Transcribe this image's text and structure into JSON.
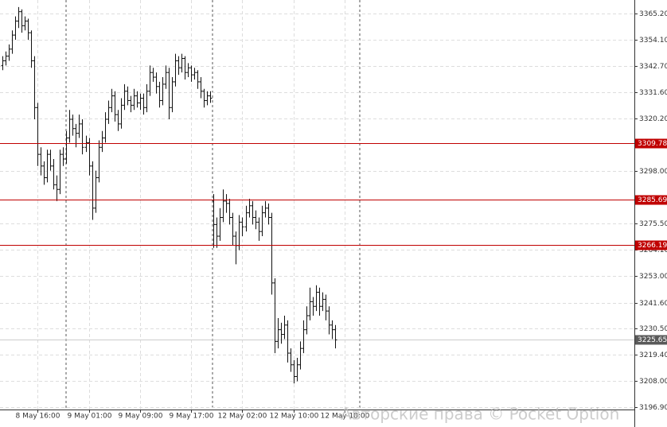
{
  "chart_data": {
    "type": "ohlc",
    "watermark": "Авторские права © Pocket Option",
    "color": "#111111",
    "level_color": "#c00000",
    "current_price": 3225.65,
    "levels": [
      3309.78,
      3285.69,
      3266.19
    ],
    "ylim": [
      3188.4,
      3371.0
    ],
    "yticks": [
      {
        "value": 3365.2,
        "label": "3365.20"
      },
      {
        "value": 3354.1,
        "label": "3354.10"
      },
      {
        "value": 3342.7,
        "label": "3342.70"
      },
      {
        "value": 3331.6,
        "label": "3331.60"
      },
      {
        "value": 3320.2,
        "label": "3320.20"
      },
      {
        "value": 3298,
        "label": "3298.00"
      },
      {
        "value": 3275.5,
        "label": "3275.50"
      },
      {
        "value": 3264.1,
        "label": "3264.10"
      },
      {
        "value": 3253,
        "label": "3253.00"
      },
      {
        "value": 3241.6,
        "label": "3241.60"
      },
      {
        "value": 3230.5,
        "label": "3230.50"
      },
      {
        "value": 3219.4,
        "label": "3219.40"
      },
      {
        "value": 3208,
        "label": "3208.00"
      },
      {
        "value": 3196.9,
        "label": "3196.90"
      }
    ],
    "grid": true,
    "categories": [
      null,
      null,
      null,
      null,
      null,
      null,
      null,
      null,
      null,
      null,
      null,
      "8 May 16:00",
      null,
      null,
      null,
      null,
      null,
      null,
      null,
      null,
      null,
      null,
      null,
      null,
      null,
      null,
      null,
      "9 May 01:00",
      null,
      null,
      null,
      null,
      null,
      null,
      null,
      null,
      null,
      null,
      null,
      null,
      null,
      null,
      null,
      "9 May 09:00",
      null,
      null,
      null,
      null,
      null,
      null,
      null,
      null,
      null,
      null,
      null,
      null,
      null,
      null,
      null,
      "9 May 17:00",
      null,
      null,
      null,
      null,
      null,
      null,
      null,
      null,
      null,
      null,
      null,
      null,
      null,
      null,
      null,
      "12 May 02:00",
      null,
      null,
      null,
      null,
      null,
      null,
      null,
      null,
      null,
      null,
      null,
      null,
      null,
      null,
      null,
      "12 May 10:00",
      null,
      null,
      null,
      null,
      null,
      null,
      null,
      null,
      null,
      null,
      null,
      null,
      null,
      null,
      null,
      "12 May 18:00"
    ],
    "ohlc": [
      [
        3343,
        3347,
        3341,
        3345
      ],
      [
        3345,
        3349,
        3343,
        3347
      ],
      [
        3347,
        3352,
        3345,
        3350
      ],
      [
        3350,
        3358,
        3348,
        3356
      ],
      [
        3356,
        3364,
        3354,
        3362
      ],
      [
        3362,
        3368,
        3359,
        3366
      ],
      [
        3366,
        3367,
        3357,
        3360
      ],
      [
        3360,
        3364,
        3358,
        3362
      ],
      [
        3362,
        3363,
        3354,
        3357
      ],
      [
        3357,
        3358,
        3342,
        3345
      ],
      [
        3345,
        3347,
        3320,
        3325
      ],
      [
        3325,
        3327,
        3300,
        3305
      ],
      [
        3305,
        3308,
        3296,
        3300
      ],
      [
        3300,
        3302,
        3292,
        3295
      ],
      [
        3295,
        3307,
        3293,
        3305
      ],
      [
        3305,
        3307,
        3298,
        3300
      ],
      [
        3300,
        3303,
        3290,
        3292
      ],
      [
        3292,
        3296,
        3285,
        3290
      ],
      [
        3290,
        3307,
        3288,
        3305
      ],
      [
        3305,
        3308,
        3300,
        3303
      ],
      [
        3303,
        3315,
        3301,
        3312
      ],
      [
        3312,
        3324,
        3310,
        3320
      ],
      [
        3320,
        3322,
        3313,
        3316
      ],
      [
        3316,
        3318,
        3308,
        3314
      ],
      [
        3314,
        3322,
        3312,
        3318
      ],
      [
        3318,
        3320,
        3305,
        3308
      ],
      [
        3308,
        3313,
        3306,
        3310
      ],
      [
        3310,
        3312,
        3296,
        3300
      ],
      [
        3300,
        3302,
        3277,
        3282
      ],
      [
        3282,
        3298,
        3280,
        3295
      ],
      [
        3295,
        3311,
        3293,
        3308
      ],
      [
        3308,
        3315,
        3306,
        3312
      ],
      [
        3312,
        3323,
        3310,
        3320
      ],
      [
        3320,
        3328,
        3318,
        3325
      ],
      [
        3325,
        3333,
        3323,
        3330
      ],
      [
        3330,
        3332,
        3319,
        3322
      ],
      [
        3322,
        3324,
        3315,
        3318
      ],
      [
        3318,
        3329,
        3316,
        3326
      ],
      [
        3326,
        3335,
        3324,
        3332
      ],
      [
        3332,
        3334,
        3326,
        3328
      ],
      [
        3328,
        3330,
        3323,
        3326
      ],
      [
        3326,
        3333,
        3324,
        3330
      ],
      [
        3330,
        3332,
        3325,
        3327
      ],
      [
        3327,
        3331,
        3324,
        3329
      ],
      [
        3329,
        3331,
        3322,
        3325
      ],
      [
        3325,
        3335,
        3323,
        3332
      ],
      [
        3332,
        3343,
        3330,
        3340
      ],
      [
        3340,
        3342,
        3336,
        3338
      ],
      [
        3338,
        3340,
        3331,
        3334
      ],
      [
        3334,
        3336,
        3325,
        3328
      ],
      [
        3328,
        3338,
        3326,
        3335
      ],
      [
        3335,
        3343,
        3333,
        3340
      ],
      [
        3340,
        3342,
        3320,
        3325
      ],
      [
        3325,
        3338,
        3323,
        3336
      ],
      [
        3336,
        3348,
        3334,
        3345
      ],
      [
        3345,
        3347,
        3339,
        3342
      ],
      [
        3342,
        3348,
        3340,
        3346
      ],
      [
        3346,
        3347,
        3337,
        3340
      ],
      [
        3340,
        3344,
        3338,
        3342
      ],
      [
        3342,
        3343,
        3336,
        3339
      ],
      [
        3339,
        3342,
        3337,
        3340
      ],
      [
        3340,
        3341,
        3333,
        3336
      ],
      [
        3336,
        3338,
        3329,
        3332
      ],
      [
        3332,
        3333,
        3325,
        3328
      ],
      [
        3328,
        3332,
        3326,
        3330
      ],
      [
        3330,
        3332,
        3327,
        3329
      ],
      [
        3285,
        3288,
        3265,
        3275
      ],
      [
        3275,
        3278,
        3265,
        3270
      ],
      [
        3270,
        3282,
        3268,
        3278
      ],
      [
        3278,
        3290,
        3276,
        3285
      ],
      [
        3285,
        3288,
        3280,
        3284
      ],
      [
        3284,
        3286,
        3275,
        3278
      ],
      [
        3278,
        3280,
        3266,
        3270
      ],
      [
        3270,
        3272,
        3258,
        3266
      ],
      [
        3266,
        3279,
        3264,
        3276
      ],
      [
        3276,
        3278,
        3270,
        3274
      ],
      [
        3274,
        3283,
        3272,
        3280
      ],
      [
        3280,
        3286,
        3278,
        3283
      ],
      [
        3283,
        3285,
        3275,
        3278
      ],
      [
        3278,
        3281,
        3273,
        3276
      ],
      [
        3276,
        3278,
        3268,
        3272
      ],
      [
        3272,
        3283,
        3270,
        3280
      ],
      [
        3280,
        3285,
        3278,
        3282
      ],
      [
        3282,
        3284,
        3275,
        3278
      ],
      [
        3278,
        3280,
        3245,
        3250
      ],
      [
        3250,
        3252,
        3220,
        3225
      ],
      [
        3225,
        3235,
        3222,
        3230
      ],
      [
        3230,
        3233,
        3224,
        3228
      ],
      [
        3228,
        3236,
        3226,
        3232
      ],
      [
        3232,
        3234,
        3216,
        3220
      ],
      [
        3220,
        3222,
        3212,
        3215
      ],
      [
        3215,
        3217,
        3207,
        3210
      ],
      [
        3210,
        3218,
        3208,
        3215
      ],
      [
        3215,
        3225,
        3213,
        3222
      ],
      [
        3222,
        3234,
        3220,
        3230
      ],
      [
        3230,
        3240,
        3228,
        3236
      ],
      [
        3236,
        3248,
        3234,
        3242
      ],
      [
        3242,
        3244,
        3236,
        3240
      ],
      [
        3240,
        3249,
        3238,
        3246
      ],
      [
        3246,
        3248,
        3236,
        3240
      ],
      [
        3240,
        3246,
        3238,
        3243
      ],
      [
        3243,
        3245,
        3234,
        3238
      ],
      [
        3238,
        3240,
        3228,
        3232
      ],
      [
        3232,
        3234,
        3226,
        3230
      ],
      [
        3230,
        3232,
        3222,
        3225.65
      ],
      null,
      null,
      null
    ]
  }
}
